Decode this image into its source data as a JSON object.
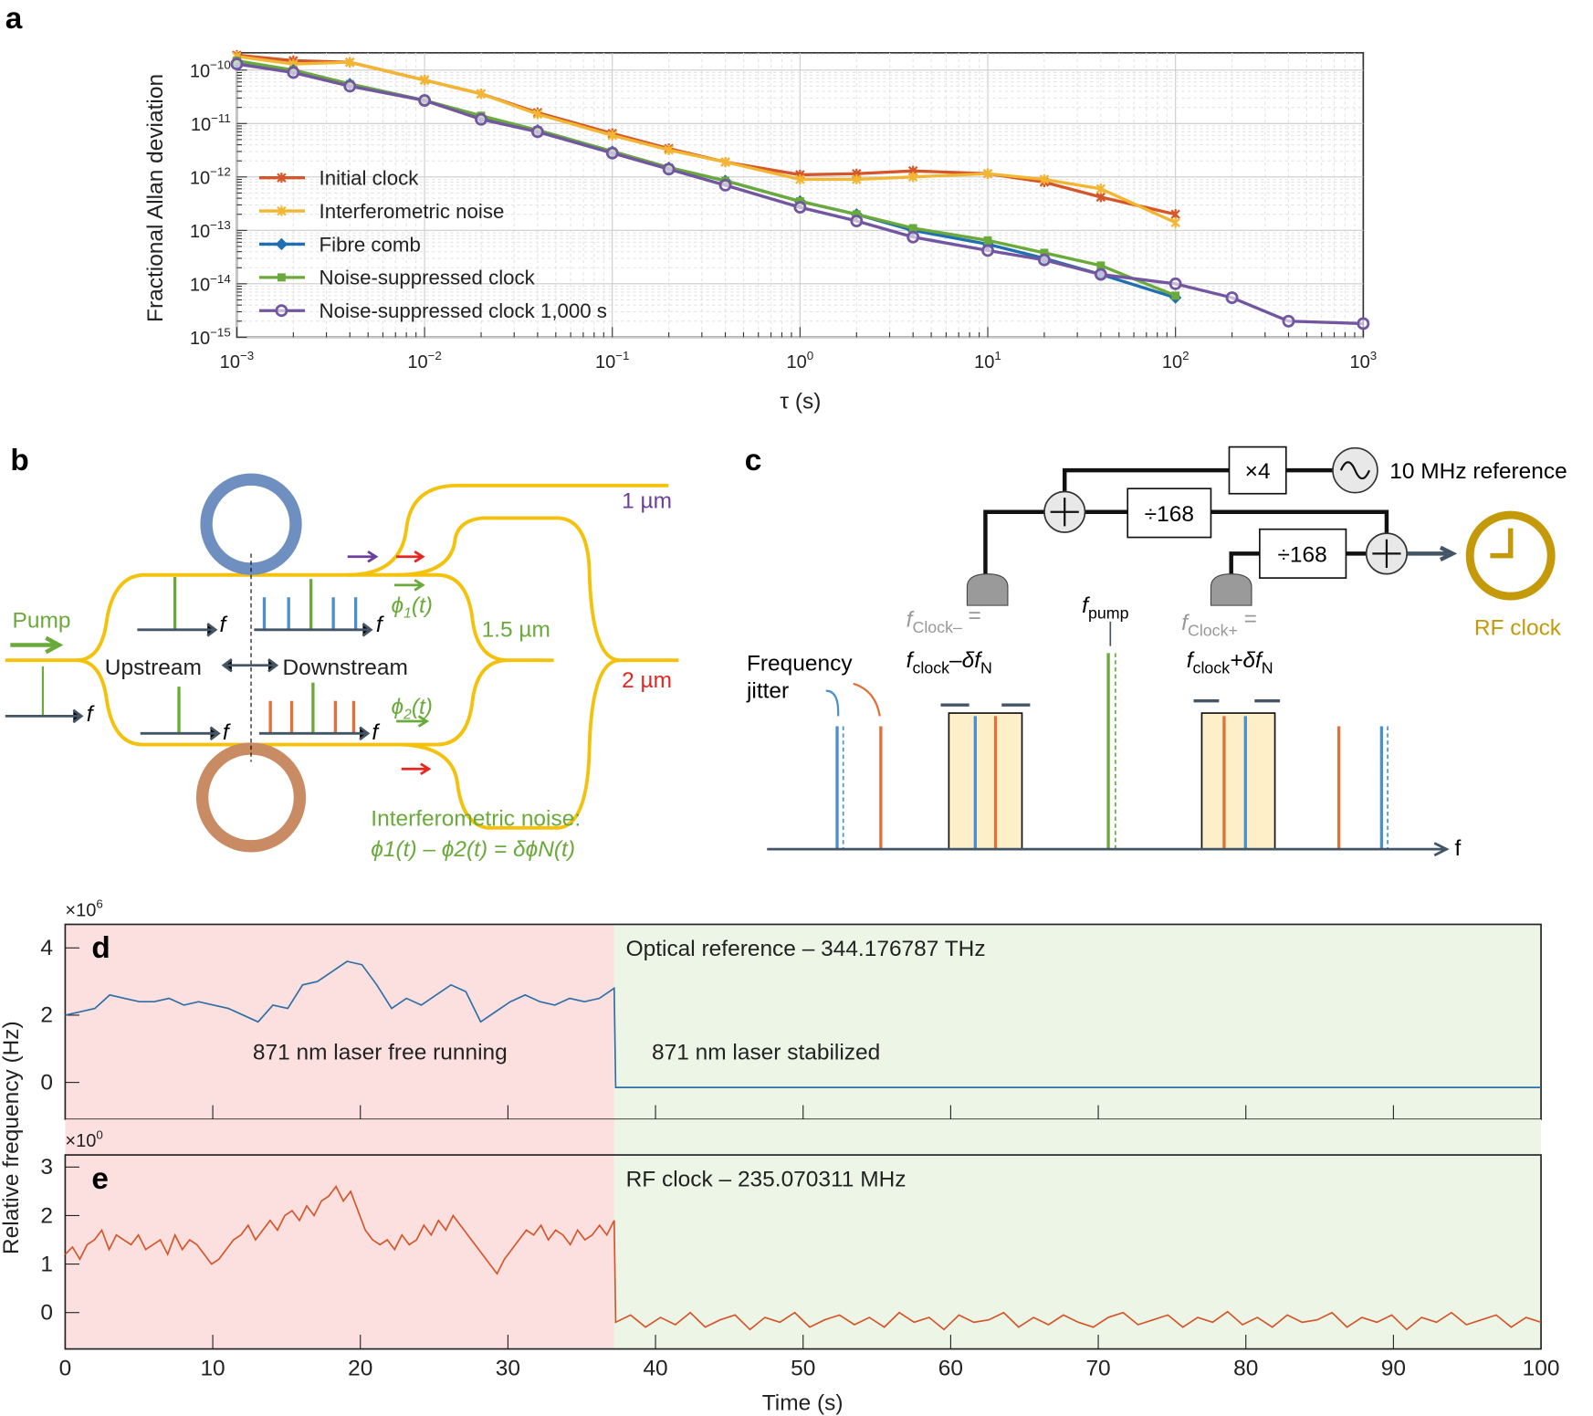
{
  "panel_labels": {
    "a": "a",
    "b": "b",
    "c": "c",
    "d": "d",
    "e": "e"
  },
  "chart_data": [
    {
      "panel": "a",
      "type": "line",
      "xlabel": "τ (s)",
      "ylabel": "Fractional Allan deviation",
      "xscale": "log",
      "yscale": "log",
      "xlim": [
        0.001,
        1000
      ],
      "ylim": [
        1e-15,
        1.9e-10
      ],
      "grid": true,
      "legend_position": "left",
      "x_tick_labels": [
        {
          "base": "10",
          "exp": "−3"
        },
        {
          "base": "10",
          "exp": "−2"
        },
        {
          "base": "10",
          "exp": "−1"
        },
        {
          "base": "10",
          "exp": "0"
        },
        {
          "base": "10",
          "exp": "1"
        },
        {
          "base": "10",
          "exp": "2"
        },
        {
          "base": "10",
          "exp": "3"
        }
      ],
      "y_tick_labels": [
        {
          "base": "10",
          "exp": "−10"
        },
        {
          "base": "10",
          "exp": "−11"
        },
        {
          "base": "10",
          "exp": "−12"
        },
        {
          "base": "10",
          "exp": "−13"
        },
        {
          "base": "10",
          "exp": "−14"
        },
        {
          "base": "10",
          "exp": "−15"
        }
      ],
      "series": [
        {
          "name": "Initial clock",
          "color": "#d4562a",
          "marker": "x",
          "x": [
            0.001,
            0.002,
            0.004,
            0.01,
            0.02,
            0.04,
            0.1,
            0.2,
            0.4,
            1,
            2,
            4,
            10,
            20,
            40,
            100
          ],
          "y": [
            1.9e-10,
            1.5e-10,
            1.4e-10,
            6.5e-11,
            3.6e-11,
            1.6e-11,
            6.5e-12,
            3.4e-12,
            1.9e-12,
            1.1e-12,
            1.15e-12,
            1.3e-12,
            1.15e-12,
            8e-13,
            4.2e-13,
            2e-13
          ]
        },
        {
          "name": "Interferometric noise",
          "color": "#f2b632",
          "marker": "star",
          "x": [
            0.001,
            0.002,
            0.004,
            0.01,
            0.02,
            0.04,
            0.1,
            0.2,
            0.4,
            1,
            2,
            4,
            10,
            20,
            40,
            100
          ],
          "y": [
            1.8e-10,
            1.3e-10,
            1.4e-10,
            6.5e-11,
            3.6e-11,
            1.5e-11,
            6e-12,
            3.2e-12,
            1.9e-12,
            9e-13,
            9e-13,
            1e-12,
            1.15e-12,
            9e-13,
            6e-13,
            1.4e-13
          ]
        },
        {
          "name": "Fibre comb",
          "color": "#1f6fb2",
          "marker": "diamond",
          "x": [
            0.001,
            0.002,
            0.004,
            0.01,
            0.02,
            0.04,
            0.1,
            0.2,
            0.4,
            1,
            2,
            4,
            10,
            20,
            40,
            100
          ],
          "y": [
            1.4e-10,
            1e-10,
            5.5e-11,
            2.7e-11,
            1.3e-11,
            7.5e-12,
            3e-12,
            1.5e-12,
            8.5e-13,
            3.5e-13,
            2e-13,
            1e-13,
            5.5e-14,
            3e-14,
            1.5e-14,
            5.5e-15
          ]
        },
        {
          "name": "Noise-suppressed clock",
          "color": "#6aaa3a",
          "marker": "square",
          "x": [
            0.001,
            0.002,
            0.004,
            0.01,
            0.02,
            0.04,
            0.1,
            0.2,
            0.4,
            1,
            2,
            4,
            10,
            20,
            40,
            100
          ],
          "y": [
            1.5e-10,
            1e-10,
            5.5e-11,
            2.7e-11,
            1.4e-11,
            7.5e-12,
            3e-12,
            1.5e-12,
            8.5e-13,
            3.5e-13,
            2e-13,
            1.1e-13,
            6.5e-14,
            3.8e-14,
            2.2e-14,
            6e-15
          ]
        },
        {
          "name": "Noise-suppressed clock 1,000 s",
          "color": "#7256a0",
          "marker": "circle",
          "x": [
            0.001,
            0.002,
            0.004,
            0.01,
            0.02,
            0.04,
            0.1,
            0.2,
            0.4,
            1,
            2,
            4,
            10,
            20,
            40,
            100,
            200,
            400,
            1000
          ],
          "y": [
            1.3e-10,
            9e-11,
            5e-11,
            2.7e-11,
            1.2e-11,
            7e-12,
            2.8e-12,
            1.4e-12,
            7e-13,
            2.7e-13,
            1.5e-13,
            7.5e-14,
            4.2e-14,
            2.8e-14,
            1.5e-14,
            1e-14,
            5.5e-15,
            2e-15,
            1.8e-15
          ]
        }
      ]
    },
    {
      "panel": "d",
      "type": "line",
      "title": "Optical reference – 344.176787 THz",
      "scale_label": {
        "base": "×10",
        "exp": "6"
      },
      "ylim": [
        -1.1,
        4.7
      ],
      "xlim": [
        0,
        100
      ],
      "y_ticks": [
        "0",
        "2",
        "4"
      ],
      "color": "#2f6ea6",
      "regions": [
        {
          "label": "871 nm laser free running",
          "from": 0,
          "to": 37.2,
          "color": "#fbe0df",
          "text_color": "#d7263d"
        },
        {
          "label": "871 nm laser stabilized",
          "from": 37.2,
          "to": 100,
          "color": "#ecf5e6",
          "text_color": "#6aaa3a"
        }
      ],
      "free_running": [
        2.0,
        2.1,
        2.2,
        2.6,
        2.5,
        2.4,
        2.4,
        2.5,
        2.3,
        2.4,
        2.3,
        2.2,
        2.0,
        1.8,
        2.3,
        2.2,
        2.9,
        3.0,
        3.3,
        3.6,
        3.5,
        2.9,
        2.2,
        2.5,
        2.3,
        2.6,
        2.9,
        2.7,
        1.8,
        2.1,
        2.4,
        2.6,
        2.4,
        2.3,
        2.5,
        2.4,
        2.5,
        2.8
      ],
      "stabilized_value": -0.15
    },
    {
      "panel": "e",
      "type": "line",
      "title": "RF clock – 235.070311 MHz",
      "scale_label": {
        "base": "×10",
        "exp": "0"
      },
      "ylim": [
        -0.75,
        3.25
      ],
      "xlim": [
        0,
        100
      ],
      "y_ticks": [
        "0",
        "1",
        "2",
        "3"
      ],
      "color": "#d4562a",
      "free_running": [
        1.2,
        1.35,
        1.1,
        1.4,
        1.5,
        1.7,
        1.3,
        1.6,
        1.5,
        1.4,
        1.6,
        1.3,
        1.4,
        1.5,
        1.2,
        1.6,
        1.3,
        1.5,
        1.4,
        1.2,
        1.0,
        1.1,
        1.3,
        1.5,
        1.6,
        1.8,
        1.5,
        1.7,
        1.9,
        1.7,
        2.0,
        2.1,
        1.9,
        2.2,
        2.0,
        2.3,
        2.4,
        2.6,
        2.3,
        2.5,
        2.1,
        1.7,
        1.5,
        1.4,
        1.5,
        1.3,
        1.6,
        1.4,
        1.5,
        1.8,
        1.6,
        1.9,
        1.7,
        2.0,
        1.8,
        1.6,
        1.4,
        1.2,
        1.0,
        0.8,
        1.1,
        1.3,
        1.5,
        1.7,
        1.6,
        1.8,
        1.5,
        1.7,
        1.6,
        1.4,
        1.7,
        1.5,
        1.6,
        1.8,
        1.6,
        1.9
      ],
      "stabilized": [
        -0.2,
        -0.05,
        -0.3,
        -0.1,
        -0.25,
        0.0,
        -0.3,
        -0.15,
        -0.05,
        -0.35,
        -0.1,
        -0.2,
        0.0,
        -0.3,
        -0.15,
        -0.05,
        -0.25,
        -0.1,
        -0.3,
        0.0,
        -0.2,
        -0.1,
        -0.35,
        -0.05,
        -0.2,
        -0.15,
        0.0,
        -0.3,
        -0.1,
        -0.25,
        -0.05,
        -0.2,
        -0.3,
        -0.1,
        0.0,
        -0.25,
        -0.15,
        -0.05,
        -0.3,
        -0.1,
        -0.2,
        0.02,
        -0.25,
        -0.1,
        -0.3,
        -0.05,
        -0.2,
        -0.15,
        0.0,
        -0.3,
        -0.1,
        -0.2,
        -0.05,
        -0.35,
        -0.1,
        -0.2,
        0.0,
        -0.25,
        -0.15,
        -0.05,
        -0.3,
        -0.1,
        -0.2
      ]
    }
  ],
  "shared_axes": {
    "ylabel": "Relative frequency (Hz)",
    "xlabel": "Time (s)",
    "x_ticks": [
      "0",
      "10",
      "20",
      "30",
      "40",
      "50",
      "60",
      "70",
      "80",
      "90",
      "100"
    ]
  },
  "panel_b": {
    "pump": "Pump",
    "upstream": "Upstream",
    "downstream": "Downstream",
    "f": "f",
    "phi1": "ϕ",
    "phi1_sub": "1",
    "phi1_t": "(t)",
    "phi2": "ϕ",
    "phi2_sub": "2",
    "phi2_t": "(t)",
    "wl_1um": "1 µm",
    "wl_15um": "1.5 µm",
    "wl_2um": "2 µm",
    "noise_title": "Interferometric noise:",
    "noise_eq": "ϕ1(t) – ϕ2(t) = δϕN(t)",
    "colors": {
      "waveguide": "#f4c20d",
      "ring_up": "#6f8fc0",
      "ring_down": "#c98b63",
      "green": "#6aaa3a"
    }
  },
  "panel_c": {
    "x4": "×4",
    "div1": "÷168",
    "div2": "÷168",
    "reference": "10 MHz reference",
    "rf_clock": "RF clock",
    "f_pump": "f",
    "f_pump_sub": "pump",
    "f_clock_minus": "f",
    "f_clock_minus_sub": "Clock–",
    "eq": "=",
    "f_clock_minus_expr": "f",
    "clock_sub": "clock",
    "minus_df": "–δf",
    "N": "N",
    "f_clock_plus": "f",
    "f_clock_plus_sub": "Clock+",
    "plus_df": "+δf",
    "jitter_1": "Frequency",
    "jitter_2": "jitter",
    "f_axis": "f",
    "colors": {
      "rf_clock": "#c49a0a",
      "blue": "#4a90d0",
      "orange": "#e2703a"
    }
  }
}
